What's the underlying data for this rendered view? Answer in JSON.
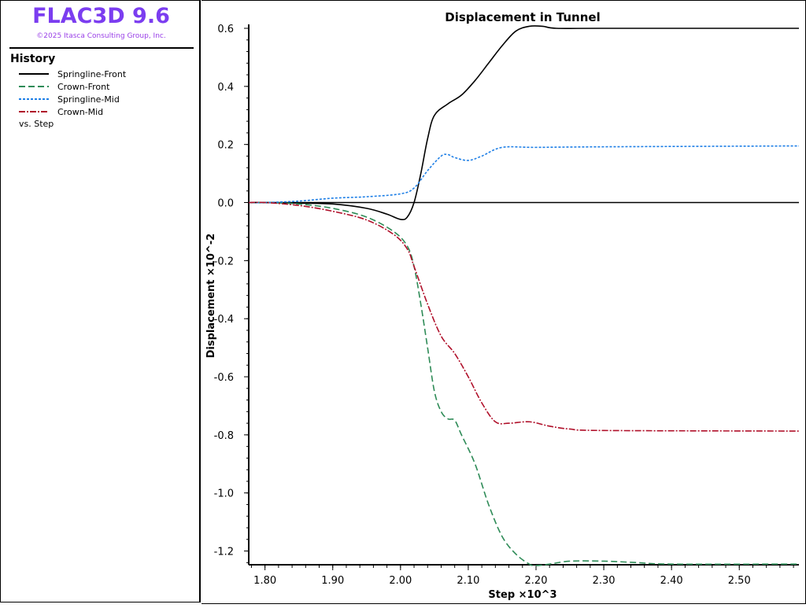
{
  "app": {
    "title": "FLAC3D 9.6",
    "copyright": "©2025 Itasca Consulting Group, Inc."
  },
  "legend": {
    "heading": "History",
    "vs": "vs. Step"
  },
  "chart_data": {
    "type": "line",
    "title": "Displacement in Tunnel",
    "xlabel": "Step ×10^3",
    "ylabel": "Displacement ×10^-2",
    "xlim": [
      1.776,
      2.588
    ],
    "ylim": [
      -1.25,
      0.6
    ],
    "xticks": [
      "1.80",
      "1.90",
      "2.00",
      "2.10",
      "2.20",
      "2.30",
      "2.40",
      "2.50"
    ],
    "yticks": [
      "0.6",
      "0.4",
      "0.2",
      "0.0",
      "-0.2",
      "-0.4",
      "-0.6",
      "-0.8",
      "-1.0",
      "-1.2"
    ],
    "series": [
      {
        "name": "Springline-Front",
        "color": "#000000",
        "dash": "",
        "points": [
          [
            1.776,
            0
          ],
          [
            1.8,
            0
          ],
          [
            1.85,
            -0.002
          ],
          [
            1.9,
            -0.005
          ],
          [
            1.95,
            -0.02
          ],
          [
            1.98,
            -0.04
          ],
          [
            2.0,
            -0.058
          ],
          [
            2.01,
            -0.05
          ],
          [
            2.02,
            0.0
          ],
          [
            2.03,
            0.1
          ],
          [
            2.04,
            0.22
          ],
          [
            2.05,
            0.3
          ],
          [
            2.07,
            0.34
          ],
          [
            2.09,
            0.37
          ],
          [
            2.11,
            0.42
          ],
          [
            2.13,
            0.48
          ],
          [
            2.15,
            0.54
          ],
          [
            2.17,
            0.59
          ],
          [
            2.19,
            0.607
          ],
          [
            2.21,
            0.607
          ],
          [
            2.23,
            0.6
          ],
          [
            2.3,
            0.6
          ],
          [
            2.588,
            0.6
          ]
        ]
      },
      {
        "name": "Crown-Front",
        "color": "#2e8b57",
        "dash": "8,4",
        "points": [
          [
            1.776,
            0
          ],
          [
            1.8,
            0
          ],
          [
            1.85,
            -0.005
          ],
          [
            1.9,
            -0.02
          ],
          [
            1.95,
            -0.05
          ],
          [
            1.99,
            -0.1
          ],
          [
            2.01,
            -0.15
          ],
          [
            2.02,
            -0.22
          ],
          [
            2.03,
            -0.35
          ],
          [
            2.04,
            -0.5
          ],
          [
            2.05,
            -0.65
          ],
          [
            2.06,
            -0.72
          ],
          [
            2.07,
            -0.745
          ],
          [
            2.08,
            -0.75
          ],
          [
            2.09,
            -0.8
          ],
          [
            2.11,
            -0.9
          ],
          [
            2.13,
            -1.04
          ],
          [
            2.15,
            -1.15
          ],
          [
            2.17,
            -1.21
          ],
          [
            2.19,
            -1.245
          ],
          [
            2.2,
            -1.25
          ],
          [
            2.22,
            -1.245
          ],
          [
            2.25,
            -1.235
          ],
          [
            2.3,
            -1.235
          ],
          [
            2.35,
            -1.24
          ],
          [
            2.4,
            -1.245
          ],
          [
            2.588,
            -1.245
          ]
        ]
      },
      {
        "name": "Springline-Mid",
        "color": "#1e7fe6",
        "dash": "3,2",
        "points": [
          [
            1.776,
            0
          ],
          [
            1.8,
            0
          ],
          [
            1.85,
            0.005
          ],
          [
            1.9,
            0.015
          ],
          [
            1.95,
            0.02
          ],
          [
            2.0,
            0.03
          ],
          [
            2.02,
            0.05
          ],
          [
            2.04,
            0.11
          ],
          [
            2.06,
            0.16
          ],
          [
            2.07,
            0.165
          ],
          [
            2.08,
            0.155
          ],
          [
            2.1,
            0.145
          ],
          [
            2.12,
            0.16
          ],
          [
            2.15,
            0.19
          ],
          [
            2.2,
            0.19
          ],
          [
            2.3,
            0.192
          ],
          [
            2.588,
            0.195
          ]
        ]
      },
      {
        "name": "Crown-Mid",
        "color": "#b0102a",
        "dash": "8,2,2,2",
        "points": [
          [
            1.776,
            0
          ],
          [
            1.8,
            0
          ],
          [
            1.85,
            -0.01
          ],
          [
            1.9,
            -0.03
          ],
          [
            1.95,
            -0.06
          ],
          [
            1.99,
            -0.11
          ],
          [
            2.01,
            -0.16
          ],
          [
            2.02,
            -0.22
          ],
          [
            2.04,
            -0.35
          ],
          [
            2.06,
            -0.46
          ],
          [
            2.08,
            -0.52
          ],
          [
            2.1,
            -0.6
          ],
          [
            2.12,
            -0.69
          ],
          [
            2.14,
            -0.755
          ],
          [
            2.16,
            -0.76
          ],
          [
            2.19,
            -0.755
          ],
          [
            2.22,
            -0.77
          ],
          [
            2.25,
            -0.78
          ],
          [
            2.3,
            -0.785
          ],
          [
            2.588,
            -0.787
          ]
        ]
      }
    ]
  }
}
